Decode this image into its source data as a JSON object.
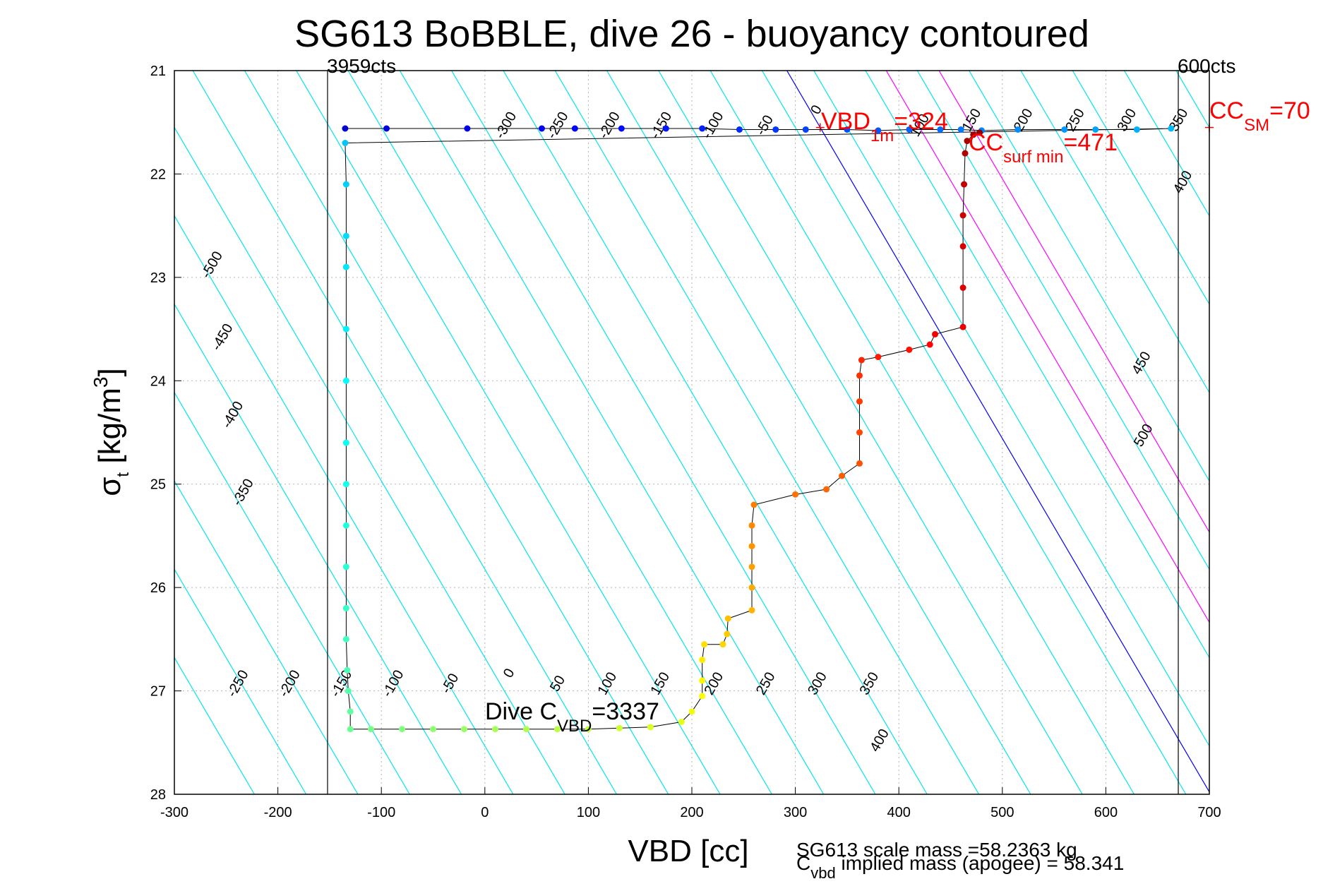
{
  "chart_data": {
    "type": "scatter",
    "title": "SG613 BoBBLE, dive 26 - buoyancy contoured",
    "xlabel": "VBD [cc]",
    "ylabel_main": "σ",
    "ylabel_sub": "t",
    "ylabel_rest": " [kg/m",
    "ylabel_sup": "3",
    "ylabel_end": "]",
    "xlim": [
      -300,
      700
    ],
    "ylim": [
      21,
      28
    ],
    "y_reversed": true,
    "grid": true,
    "xticks": [
      "-300",
      "-200",
      "-100",
      "0",
      "100",
      "200",
      "300",
      "400",
      "500",
      "600",
      "700"
    ],
    "yticks": [
      "21",
      "22",
      "23",
      "24",
      "25",
      "26",
      "27",
      "28"
    ],
    "pump_limits": [
      {
        "vbd": -152,
        "label": "3959cts"
      },
      {
        "vbd": 670,
        "label": "600cts"
      }
    ],
    "annotations": {
      "vbd_1m": {
        "main": "VBD",
        "sub": "1m",
        "value": "=324",
        "vbd": 324,
        "sigma": 21.55
      },
      "cc_surf_min": {
        "main": "CC",
        "sub": "surf min",
        "value": "=471",
        "vbd": 471,
        "sigma": 21.6
      },
      "cc_sm": {
        "main": "CC",
        "sub": "SM",
        "value": "=70",
        "vbd": 700,
        "sigma": 21.55
      },
      "dive_c_vbd": {
        "main": "Dive C",
        "sub": "VBD",
        "value": "=3337",
        "vbd": 0,
        "sigma": 27.3
      }
    },
    "footer": {
      "scale_mass": "SG613 scale mass =58.2363 kg",
      "implied_main": "C",
      "implied_sub": "vbd",
      "implied_rest": " implied mass (apogee) = 58.341"
    },
    "buoyancy_contours": {
      "slope_vbd_per_sigma": 58.5,
      "ref_sigma": 21.55,
      "cyan_offsets": [
        -600,
        -550,
        -500,
        -450,
        -400,
        -350,
        -300,
        -250,
        -200,
        -150,
        -100,
        -50,
        0,
        50,
        100,
        150,
        200,
        250,
        300,
        350,
        400,
        450,
        500,
        550,
        600,
        650,
        700,
        750,
        800,
        850,
        900,
        950
      ],
      "blue_line": {
        "vbd_at_ref": 324,
        "color": "#0000ff"
      },
      "magenta_lines": [
        {
          "vbd_at_ref": 420,
          "color": "#ff00ff"
        },
        {
          "vbd_at_ref": 471,
          "color": "#ff00ff"
        }
      ],
      "labels_top": [
        {
          "text": "-300",
          "vbd": 24,
          "sigma": 21.55
        },
        {
          "text": "-250",
          "vbd": 74,
          "sigma": 21.55
        },
        {
          "text": "-200",
          "vbd": 124,
          "sigma": 21.55
        },
        {
          "text": "-150",
          "vbd": 174,
          "sigma": 21.55
        },
        {
          "text": "-100",
          "vbd": 224,
          "sigma": 21.55
        },
        {
          "text": "-50",
          "vbd": 274,
          "sigma": 21.55
        },
        {
          "text": "0",
          "vbd": 324,
          "sigma": 21.4
        },
        {
          "text": "100",
          "vbd": 424,
          "sigma": 21.55
        },
        {
          "text": "150",
          "vbd": 474,
          "sigma": 21.5
        },
        {
          "text": "200",
          "vbd": 524,
          "sigma": 21.5
        },
        {
          "text": "250",
          "vbd": 574,
          "sigma": 21.5
        },
        {
          "text": "300",
          "vbd": 624,
          "sigma": 21.5
        },
        {
          "text": "350",
          "vbd": 674,
          "sigma": 21.5
        },
        {
          "text": "400",
          "vbd": 678,
          "sigma": 22.1
        }
      ],
      "labels_bottom": [
        {
          "text": "-250",
          "vbd": -235,
          "sigma": 26.95
        },
        {
          "text": "-200",
          "vbd": -185,
          "sigma": 26.95
        },
        {
          "text": "-150",
          "vbd": -135,
          "sigma": 26.95
        },
        {
          "text": "-100",
          "vbd": -85,
          "sigma": 26.95
        },
        {
          "text": "-50",
          "vbd": -30,
          "sigma": 26.95
        },
        {
          "text": "0",
          "vbd": 27,
          "sigma": 26.85
        },
        {
          "text": "50",
          "vbd": 74,
          "sigma": 26.95
        },
        {
          "text": "100",
          "vbd": 122,
          "sigma": 26.95
        },
        {
          "text": "150",
          "vbd": 173,
          "sigma": 26.95
        },
        {
          "text": "200",
          "vbd": 225,
          "sigma": 26.95
        },
        {
          "text": "250",
          "vbd": 275,
          "sigma": 26.95
        },
        {
          "text": "300",
          "vbd": 325,
          "sigma": 26.95
        },
        {
          "text": "350",
          "vbd": 375,
          "sigma": 26.95
        },
        {
          "text": "400",
          "vbd": 385,
          "sigma": 27.5
        }
      ],
      "labels_left": [
        {
          "text": "-500",
          "vbd": -260,
          "sigma": 22.9
        },
        {
          "text": "-450",
          "vbd": -250,
          "sigma": 23.6
        },
        {
          "text": "-400",
          "vbd": -240,
          "sigma": 24.35
        },
        {
          "text": "-350",
          "vbd": -230,
          "sigma": 25.1
        }
      ],
      "labels_right": [
        {
          "text": "450",
          "vbd": 638,
          "sigma": 23.85
        },
        {
          "text": "500",
          "vbd": 640,
          "sigma": 24.55
        }
      ]
    },
    "series": [
      {
        "name": "",
        "color_by": "depth",
        "points": [
          [
            -135,
            21.56
          ],
          [
            -95,
            21.56
          ],
          [
            -17,
            21.56
          ],
          [
            55,
            21.56
          ],
          [
            87,
            21.56
          ],
          [
            132,
            21.56
          ],
          [
            175,
            21.56
          ],
          [
            210,
            21.56
          ],
          [
            246,
            21.57
          ],
          [
            281,
            21.57
          ],
          [
            310,
            21.57
          ],
          [
            350,
            21.57
          ],
          [
            380,
            21.58
          ],
          [
            410,
            21.57
          ],
          [
            440,
            21.57
          ],
          [
            460,
            21.57
          ],
          [
            480,
            21.58
          ],
          [
            515,
            21.57
          ],
          [
            560,
            21.57
          ],
          [
            590,
            21.57
          ],
          [
            630,
            21.57
          ],
          [
            663,
            21.56
          ],
          [
            -135,
            21.7
          ],
          [
            -134,
            22.1
          ],
          [
            -134,
            22.6
          ],
          [
            -134,
            22.9
          ],
          [
            -134,
            23.5
          ],
          [
            -134,
            24.0
          ],
          [
            -134,
            24.6
          ],
          [
            -134,
            25.0
          ],
          [
            -134,
            25.4
          ],
          [
            -134,
            25.8
          ],
          [
            -134,
            26.2
          ],
          [
            -134,
            26.5
          ],
          [
            -133,
            26.8
          ],
          [
            -132,
            27.0
          ],
          [
            -130,
            27.2
          ],
          [
            -130,
            27.37
          ],
          [
            -110,
            27.37
          ],
          [
            -80,
            27.37
          ],
          [
            -50,
            27.37
          ],
          [
            -20,
            27.37
          ],
          [
            10,
            27.37
          ],
          [
            40,
            27.37
          ],
          [
            70,
            27.37
          ],
          [
            100,
            27.37
          ],
          [
            130,
            27.36
          ],
          [
            160,
            27.35
          ],
          [
            190,
            27.3
          ],
          [
            200,
            27.2
          ],
          [
            210,
            27.05
          ],
          [
            210,
            26.9
          ],
          [
            210,
            26.7
          ],
          [
            212,
            26.55
          ],
          [
            230,
            26.55
          ],
          [
            234,
            26.45
          ],
          [
            235,
            26.3
          ],
          [
            258,
            26.22
          ],
          [
            258,
            26.0
          ],
          [
            258,
            25.8
          ],
          [
            258,
            25.6
          ],
          [
            258,
            25.4
          ],
          [
            260,
            25.2
          ],
          [
            300,
            25.1
          ],
          [
            330,
            25.05
          ],
          [
            345,
            24.92
          ],
          [
            362,
            24.8
          ],
          [
            362,
            24.5
          ],
          [
            362,
            24.2
          ],
          [
            362,
            23.95
          ],
          [
            364,
            23.8
          ],
          [
            380,
            23.77
          ],
          [
            410,
            23.7
          ],
          [
            430,
            23.65
          ],
          [
            435,
            23.55
          ],
          [
            462,
            23.48
          ],
          [
            462,
            23.1
          ],
          [
            462,
            22.7
          ],
          [
            462,
            22.4
          ],
          [
            463,
            22.1
          ],
          [
            464,
            21.8
          ],
          [
            466,
            21.68
          ],
          [
            472,
            21.62
          ],
          [
            478,
            21.6
          ]
        ]
      }
    ]
  }
}
